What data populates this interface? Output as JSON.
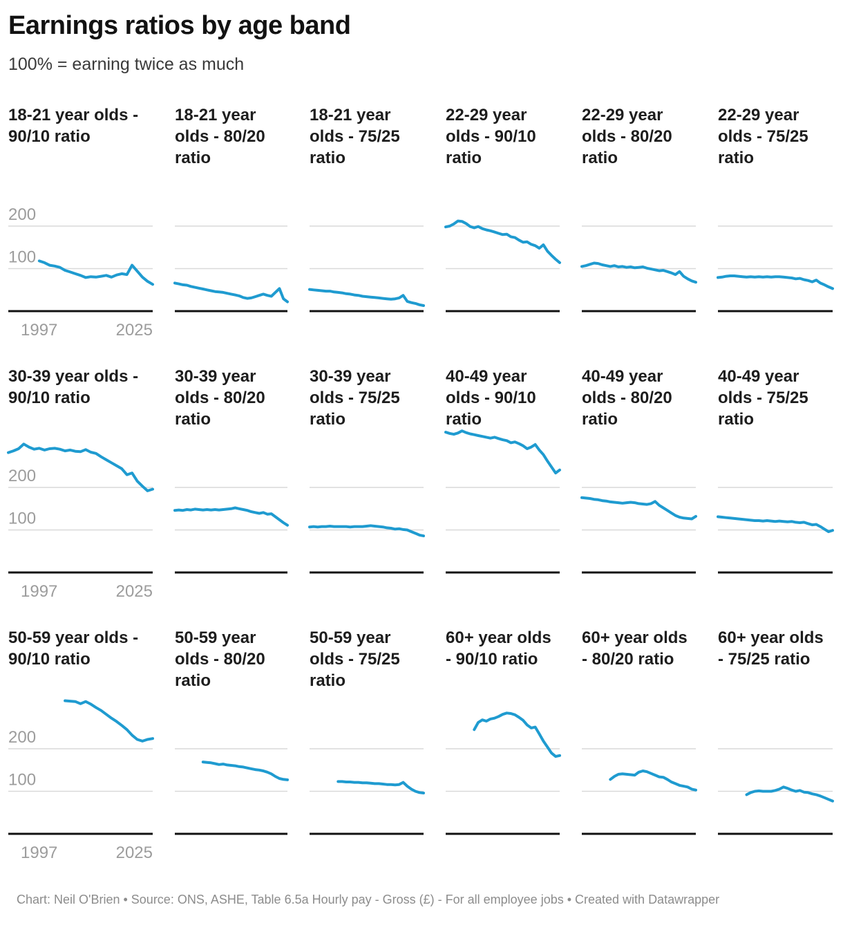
{
  "header": {
    "title": "Earnings ratios by age band",
    "subtitle": "100% = earning twice as much"
  },
  "footer": {
    "text": "Chart: Neil O'Brien • Source: ONS, ASHE, Table 6.5a Hourly pay - Gross (£) - For all employee jobs • Created with Datawrapper"
  },
  "colors": {
    "line": "#1f9bd0",
    "gridline": "#d9d9d9",
    "axis_line": "#111111",
    "tick_label": "#9c9c9c"
  },
  "chart_data": {
    "type": "line",
    "layout": {
      "rows": 3,
      "cols": 6,
      "grid": "horizontal gridlines only",
      "legend": "none",
      "axis_labels_on_first_column_only": true
    },
    "x_start": 1997,
    "x_end": 2025,
    "x_axis_labels": [
      "1997",
      "2025"
    ],
    "y_gridlines": [
      100,
      200
    ],
    "y_tick_labels": [
      "200",
      "100"
    ],
    "ylim": [
      0,
      335
    ],
    "units": "%",
    "x": [
      1997,
      1998,
      1999,
      2000,
      2001,
      2002,
      2003,
      2004,
      2005,
      2006,
      2007,
      2008,
      2009,
      2010,
      2011,
      2012,
      2013,
      2014,
      2015,
      2016,
      2017,
      2018,
      2019,
      2020,
      2021,
      2022,
      2023,
      2024,
      2025
    ],
    "panels": [
      {
        "title": "18-21 year olds - 90/10 ratio",
        "age_band": "18-21",
        "ratio": "90/10",
        "values": [
          null,
          null,
          null,
          null,
          null,
          null,
          118,
          114,
          108,
          106,
          103,
          96,
          92,
          88,
          84,
          79,
          81,
          80,
          82,
          84,
          80,
          85,
          88,
          86,
          108,
          94,
          80,
          70,
          63
        ]
      },
      {
        "title": "18-21 year olds - 80/20 ratio",
        "age_band": "18-21",
        "ratio": "80/20",
        "values": [
          66,
          64,
          62,
          61,
          58,
          56,
          54,
          52,
          50,
          48,
          46,
          45,
          44,
          42,
          40,
          38,
          36,
          32,
          30,
          31,
          34,
          37,
          40,
          37,
          35,
          44,
          53,
          29,
          22
        ]
      },
      {
        "title": "18-21 year olds - 75/25 ratio",
        "age_band": "18-21",
        "ratio": "75/25",
        "values": [
          51,
          50,
          49,
          48,
          47,
          47,
          45,
          44,
          43,
          41,
          40,
          38,
          37,
          35,
          34,
          33,
          32,
          31,
          30,
          29,
          28,
          29,
          31,
          37,
          23,
          20,
          18,
          15,
          13
        ]
      },
      {
        "title": "22-29 year olds - 90/10 ratio",
        "age_band": "22-29",
        "ratio": "90/10",
        "values": [
          198,
          200,
          205,
          212,
          211,
          206,
          199,
          196,
          199,
          194,
          191,
          189,
          186,
          183,
          180,
          181,
          175,
          173,
          167,
          162,
          163,
          157,
          154,
          148,
          156,
          141,
          131,
          122,
          114
        ]
      },
      {
        "title": "22-29 year olds - 80/20 ratio",
        "age_band": "22-29",
        "ratio": "80/20",
        "values": [
          105,
          107,
          110,
          113,
          112,
          109,
          107,
          105,
          107,
          104,
          105,
          103,
          104,
          102,
          103,
          104,
          101,
          99,
          97,
          95,
          96,
          93,
          90,
          86,
          93,
          82,
          76,
          71,
          68
        ]
      },
      {
        "title": "22-29 year olds - 75/25 ratio",
        "age_band": "22-29",
        "ratio": "75/25",
        "values": [
          79,
          80,
          82,
          83,
          83,
          82,
          81,
          80,
          81,
          80,
          81,
          80,
          81,
          80,
          81,
          81,
          80,
          79,
          78,
          76,
          77,
          74,
          72,
          69,
          73,
          66,
          62,
          57,
          53
        ]
      },
      {
        "title": "30-39 year olds - 90/10 ratio",
        "age_band": "30-39",
        "ratio": "90/10",
        "values": [
          282,
          286,
          291,
          302,
          295,
          290,
          292,
          288,
          291,
          292,
          290,
          286,
          288,
          285,
          284,
          289,
          283,
          280,
          272,
          265,
          258,
          251,
          244,
          230,
          234,
          215,
          203,
          192,
          196
        ]
      },
      {
        "title": "30-39 year olds - 80/20 ratio",
        "age_band": "30-39",
        "ratio": "80/20",
        "values": [
          146,
          147,
          146,
          148,
          147,
          149,
          148,
          147,
          148,
          147,
          148,
          147,
          148,
          149,
          150,
          152,
          150,
          148,
          146,
          143,
          141,
          139,
          141,
          137,
          138,
          131,
          124,
          117,
          111
        ]
      },
      {
        "title": "30-39 year olds - 75/25 ratio",
        "age_band": "30-39",
        "ratio": "75/25",
        "values": [
          107,
          108,
          107,
          108,
          108,
          109,
          108,
          108,
          108,
          108,
          107,
          108,
          108,
          108,
          109,
          110,
          109,
          108,
          107,
          105,
          104,
          102,
          103,
          101,
          100,
          96,
          92,
          88,
          86
        ]
      },
      {
        "title": "40-49 year olds - 90/10 ratio",
        "age_band": "40-49",
        "ratio": "90/10",
        "values": [
          330,
          327,
          325,
          328,
          333,
          329,
          326,
          324,
          322,
          320,
          318,
          316,
          318,
          315,
          312,
          310,
          305,
          307,
          303,
          298,
          291,
          295,
          301,
          288,
          277,
          262,
          248,
          234,
          241
        ]
      },
      {
        "title": "40-49 year olds - 80/20 ratio",
        "age_band": "40-49",
        "ratio": "80/20",
        "values": [
          176,
          175,
          174,
          172,
          171,
          169,
          168,
          166,
          165,
          164,
          163,
          164,
          165,
          164,
          162,
          161,
          160,
          162,
          167,
          158,
          152,
          146,
          140,
          134,
          130,
          128,
          127,
          126,
          132
        ]
      },
      {
        "title": "40-49 year olds - 75/25 ratio",
        "age_band": "40-49",
        "ratio": "75/25",
        "values": [
          131,
          130,
          129,
          128,
          127,
          126,
          125,
          124,
          123,
          122,
          122,
          121,
          122,
          121,
          120,
          121,
          120,
          119,
          120,
          118,
          117,
          118,
          115,
          112,
          113,
          108,
          102,
          96,
          99
        ]
      },
      {
        "title": "50-59 year olds - 90/10 ratio",
        "age_band": "50-59",
        "ratio": "90/10",
        "values": [
          null,
          null,
          null,
          null,
          null,
          null,
          null,
          null,
          null,
          null,
          null,
          313,
          312,
          311,
          306,
          311,
          305,
          297,
          290,
          281,
          272,
          264,
          255,
          245,
          232,
          222,
          218,
          222,
          224
        ]
      },
      {
        "title": "50-59 year olds - 80/20 ratio",
        "age_band": "50-59",
        "ratio": "80/20",
        "values": [
          null,
          null,
          null,
          null,
          null,
          null,
          null,
          169,
          168,
          167,
          165,
          163,
          164,
          162,
          161,
          160,
          158,
          157,
          155,
          153,
          151,
          150,
          148,
          145,
          141,
          135,
          130,
          128,
          127
        ]
      },
      {
        "title": "50-59 year olds - 75/25 ratio",
        "age_band": "50-59",
        "ratio": "75/25",
        "values": [
          null,
          null,
          null,
          null,
          null,
          null,
          null,
          123,
          123,
          122,
          122,
          121,
          121,
          120,
          120,
          119,
          118,
          118,
          117,
          116,
          116,
          115,
          116,
          121,
          112,
          105,
          100,
          97,
          96
        ]
      },
      {
        "title": "60+ year olds - 90/10 ratio",
        "age_band": "60+",
        "ratio": "90/10",
        "values": [
          null,
          null,
          null,
          null,
          null,
          null,
          null,
          245,
          262,
          268,
          265,
          270,
          272,
          276,
          281,
          284,
          283,
          280,
          274,
          267,
          256,
          249,
          251,
          235,
          218,
          204,
          190,
          182,
          184
        ]
      },
      {
        "title": "60+ year olds - 80/20 ratio",
        "age_band": "60+",
        "ratio": "80/20",
        "values": [
          null,
          null,
          null,
          null,
          null,
          null,
          null,
          128,
          135,
          140,
          141,
          140,
          139,
          138,
          145,
          148,
          146,
          142,
          138,
          134,
          133,
          128,
          122,
          118,
          114,
          112,
          110,
          105,
          103
        ]
      },
      {
        "title": "60+ year olds - 75/25 ratio",
        "age_band": "60+",
        "ratio": "75/25",
        "values": [
          null,
          null,
          null,
          null,
          null,
          null,
          null,
          92,
          97,
          100,
          101,
          100,
          100,
          100,
          102,
          105,
          110,
          107,
          103,
          100,
          102,
          98,
          97,
          94,
          92,
          89,
          85,
          81,
          77
        ]
      }
    ]
  }
}
